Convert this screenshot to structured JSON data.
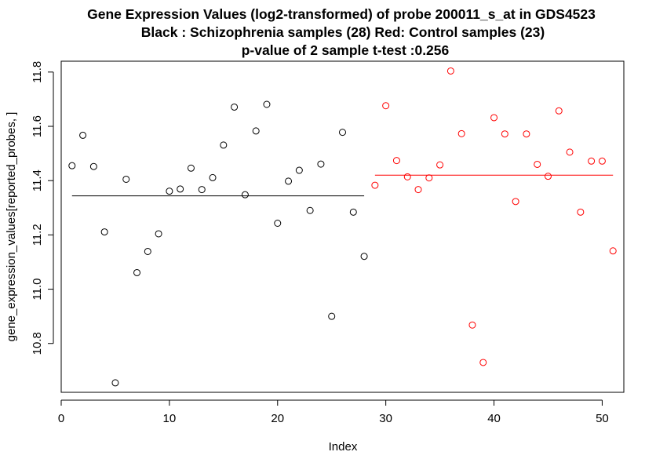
{
  "chart_data": {
    "type": "scatter",
    "title_lines": [
      "Gene Expression Values (log2-transformed) of probe 200011_s_at in GDS4523",
      "Black : Schizophrenia samples (28)    Red: Control samples (23)",
      "p-value of 2 sample t-test :0.256"
    ],
    "xlabel": "Index",
    "ylabel": "gene_expression_values[reported_probes, ]",
    "xlim": [
      0,
      52
    ],
    "ylim": [
      10.62,
      11.84
    ],
    "x_ticks": [
      0,
      10,
      20,
      30,
      40,
      50
    ],
    "y_ticks": [
      10.8,
      11.0,
      11.2,
      11.4,
      11.6,
      11.8
    ],
    "grid": false,
    "series": [
      {
        "name": "Schizophrenia samples (28)",
        "color": "#000000",
        "x": [
          1,
          2,
          3,
          4,
          5,
          6,
          7,
          8,
          9,
          10,
          11,
          12,
          13,
          14,
          15,
          16,
          17,
          18,
          19,
          20,
          21,
          22,
          23,
          24,
          25,
          26,
          27,
          28
        ],
        "y": [
          11.455,
          11.567,
          11.452,
          11.211,
          10.655,
          11.405,
          11.061,
          11.139,
          11.204,
          11.361,
          11.369,
          11.446,
          11.367,
          11.411,
          11.531,
          11.671,
          11.348,
          11.583,
          11.681,
          11.243,
          11.398,
          11.438,
          11.29,
          11.461,
          10.9,
          11.578,
          11.284,
          11.121
        ],
        "mean": 11.344
      },
      {
        "name": "Control samples (23)",
        "color": "#ff0000",
        "x": [
          29,
          30,
          31,
          32,
          33,
          34,
          35,
          36,
          37,
          38,
          39,
          40,
          41,
          42,
          43,
          44,
          45,
          46,
          47,
          48,
          49,
          50,
          51
        ],
        "y": [
          11.383,
          11.676,
          11.474,
          11.414,
          11.367,
          11.41,
          11.458,
          11.804,
          11.573,
          10.868,
          10.73,
          11.632,
          11.572,
          11.323,
          11.572,
          11.46,
          11.416,
          11.657,
          11.505,
          11.284,
          11.472,
          11.472,
          11.141
        ],
        "mean": 11.42
      }
    ]
  }
}
